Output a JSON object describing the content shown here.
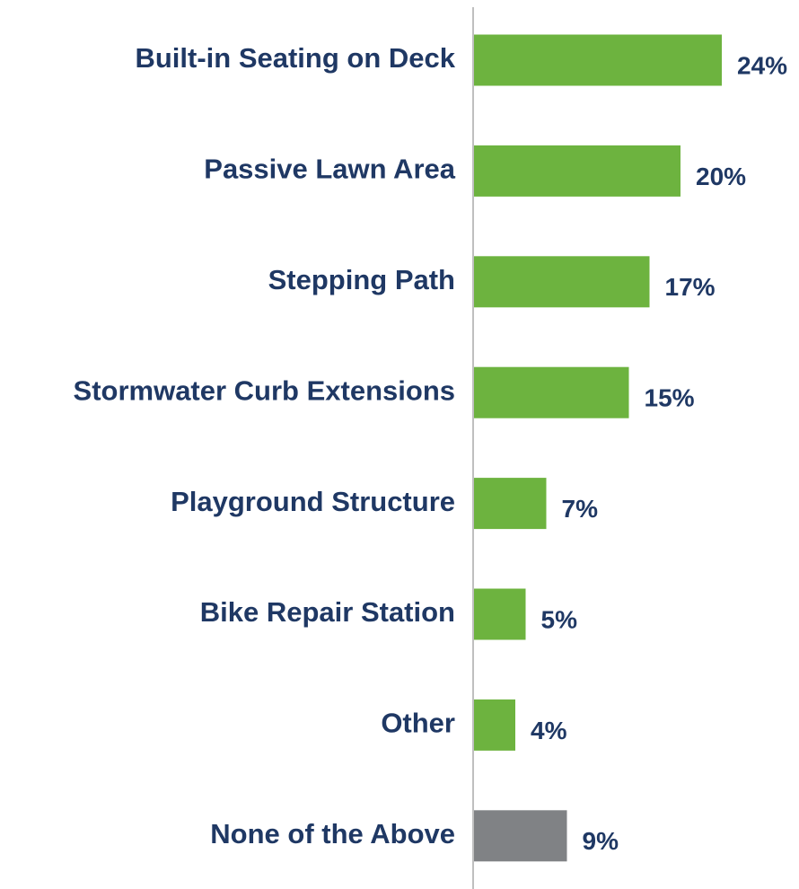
{
  "chart_data": {
    "type": "barh",
    "categories": [
      "Built-in Seating on Deck",
      "Passive Lawn Area",
      "Stepping Path",
      "Stormwater Curb Extensions",
      "Playground Structure",
      "Bike Repair Station",
      "Other",
      "None of the Above"
    ],
    "values": [
      24,
      20,
      17,
      15,
      7,
      5,
      4,
      9
    ],
    "value_labels": [
      "24%",
      "20%",
      "17%",
      "15%",
      "7%",
      "5%",
      "4%",
      "9%"
    ],
    "colors": [
      "#6db33f",
      "#6db33f",
      "#6db33f",
      "#6db33f",
      "#6db33f",
      "#6db33f",
      "#6db33f",
      "#808285"
    ]
  }
}
